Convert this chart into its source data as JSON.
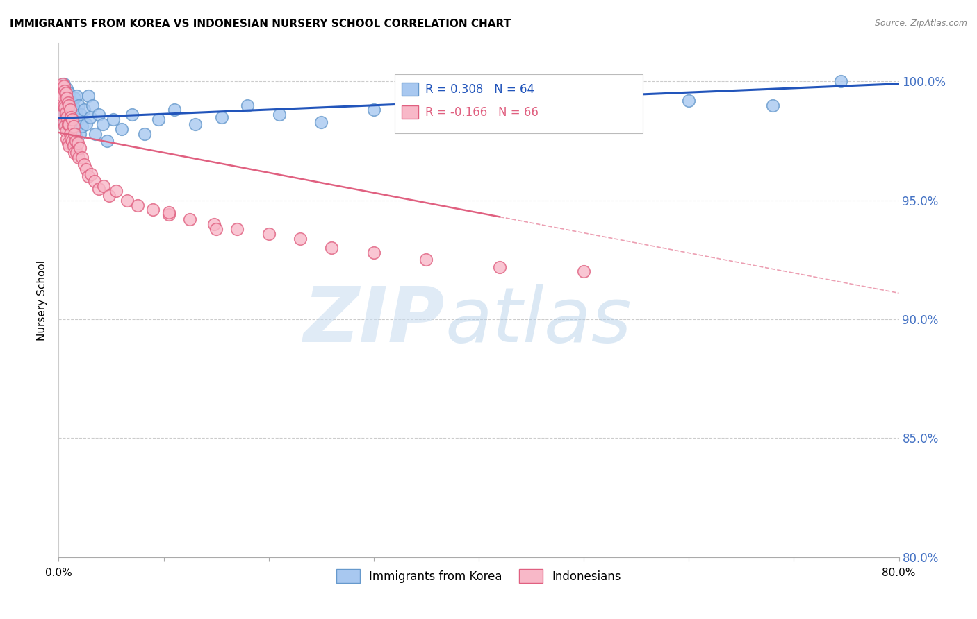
{
  "title": "IMMIGRANTS FROM KOREA VS INDONESIAN NURSERY SCHOOL CORRELATION CHART",
  "source": "Source: ZipAtlas.com",
  "ylabel": "Nursery School",
  "ytick_labels": [
    "100.0%",
    "95.0%",
    "90.0%",
    "85.0%",
    "80.0%"
  ],
  "ytick_values": [
    1.0,
    0.95,
    0.9,
    0.85,
    0.8
  ],
  "xmin": 0.0,
  "xmax": 0.8,
  "ymin": 0.824,
  "ymax": 1.016,
  "korea_color": "#A8C8F0",
  "korea_edge_color": "#6699CC",
  "indonesia_color": "#F8B8C8",
  "indonesia_edge_color": "#E06080",
  "korea_R": 0.308,
  "korea_N": 64,
  "indonesia_R": -0.166,
  "indonesia_N": 66,
  "korea_line_color": "#2255BB",
  "indonesia_line_color": "#E06080",
  "legend_label_korea": "Immigrants from Korea",
  "legend_label_indonesia": "Indonesians",
  "korea_scatter_x": [
    0.002,
    0.003,
    0.003,
    0.004,
    0.004,
    0.005,
    0.005,
    0.005,
    0.006,
    0.006,
    0.007,
    0.007,
    0.008,
    0.008,
    0.008,
    0.009,
    0.009,
    0.01,
    0.01,
    0.01,
    0.011,
    0.011,
    0.012,
    0.012,
    0.013,
    0.013,
    0.014,
    0.014,
    0.015,
    0.016,
    0.016,
    0.017,
    0.018,
    0.019,
    0.02,
    0.021,
    0.022,
    0.024,
    0.026,
    0.028,
    0.03,
    0.032,
    0.035,
    0.038,
    0.042,
    0.046,
    0.052,
    0.06,
    0.07,
    0.082,
    0.095,
    0.11,
    0.13,
    0.155,
    0.18,
    0.21,
    0.25,
    0.3,
    0.36,
    0.43,
    0.51,
    0.6,
    0.68,
    0.745
  ],
  "korea_scatter_y": [
    0.99,
    0.988,
    0.985,
    0.993,
    0.984,
    0.999,
    0.996,
    0.991,
    0.987,
    0.982,
    0.994,
    0.988,
    0.997,
    0.99,
    0.985,
    0.993,
    0.983,
    0.995,
    0.989,
    0.981,
    0.992,
    0.984,
    0.988,
    0.981,
    0.991,
    0.985,
    0.989,
    0.98,
    0.993,
    0.987,
    0.977,
    0.994,
    0.984,
    0.99,
    0.978,
    0.986,
    0.981,
    0.988,
    0.982,
    0.994,
    0.985,
    0.99,
    0.978,
    0.986,
    0.982,
    0.975,
    0.984,
    0.98,
    0.986,
    0.978,
    0.984,
    0.988,
    0.982,
    0.985,
    0.99,
    0.986,
    0.983,
    0.988,
    0.985,
    0.99,
    0.988,
    0.992,
    0.99,
    1.0
  ],
  "indonesia_scatter_x": [
    0.002,
    0.002,
    0.003,
    0.003,
    0.004,
    0.004,
    0.004,
    0.005,
    0.005,
    0.005,
    0.006,
    0.006,
    0.006,
    0.007,
    0.007,
    0.007,
    0.008,
    0.008,
    0.008,
    0.009,
    0.009,
    0.009,
    0.01,
    0.01,
    0.01,
    0.011,
    0.011,
    0.012,
    0.012,
    0.013,
    0.013,
    0.014,
    0.014,
    0.015,
    0.015,
    0.016,
    0.017,
    0.018,
    0.019,
    0.02,
    0.022,
    0.024,
    0.026,
    0.028,
    0.031,
    0.034,
    0.038,
    0.043,
    0.048,
    0.055,
    0.065,
    0.075,
    0.09,
    0.105,
    0.125,
    0.148,
    0.17,
    0.2,
    0.23,
    0.26,
    0.3,
    0.35,
    0.15,
    0.42,
    0.105,
    0.5
  ],
  "indonesia_scatter_y": [
    0.997,
    0.993,
    0.998,
    0.991,
    0.999,
    0.994,
    0.986,
    0.998,
    0.99,
    0.983,
    0.996,
    0.989,
    0.981,
    0.995,
    0.987,
    0.979,
    0.993,
    0.985,
    0.976,
    0.991,
    0.982,
    0.974,
    0.99,
    0.982,
    0.973,
    0.988,
    0.978,
    0.985,
    0.976,
    0.984,
    0.975,
    0.981,
    0.973,
    0.978,
    0.97,
    0.975,
    0.97,
    0.974,
    0.968,
    0.972,
    0.968,
    0.965,
    0.963,
    0.96,
    0.961,
    0.958,
    0.955,
    0.956,
    0.952,
    0.954,
    0.95,
    0.948,
    0.946,
    0.944,
    0.942,
    0.94,
    0.938,
    0.936,
    0.934,
    0.93,
    0.928,
    0.925,
    0.938,
    0.922,
    0.945,
    0.92
  ],
  "korea_line_x0": 0.0,
  "korea_line_y0": 0.9845,
  "korea_line_x1": 0.8,
  "korea_line_y1": 0.999,
  "indonesia_line_x0": 0.0,
  "indonesia_line_y0": 0.9785,
  "indonesia_line_x1": 0.8,
  "indonesia_line_y1": 0.911
}
